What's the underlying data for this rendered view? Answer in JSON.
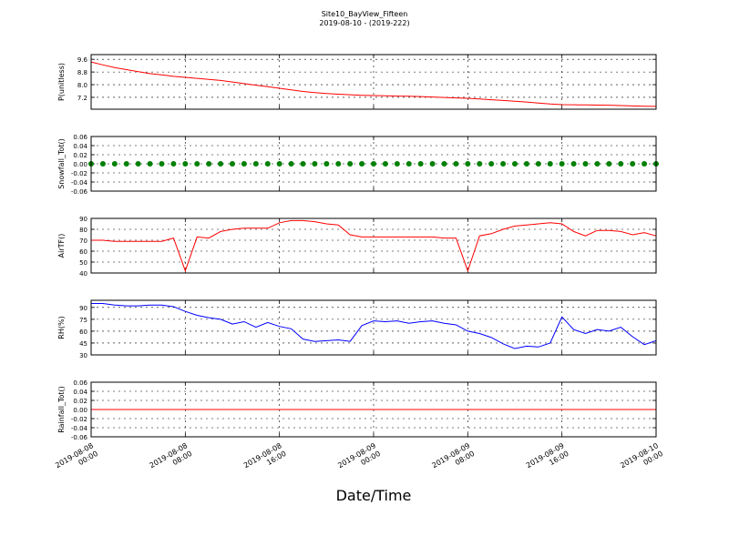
{
  "chart_data": [
    {
      "type": "line",
      "title": "Site10_BayView_Fifteen",
      "subtitle": "2019-08-10 - (2019-222)",
      "ylabel": "P(unitless)",
      "color": "#ff0000",
      "grid": true,
      "xlim": [
        "2019-08-08 00:00",
        "2019-08-10 00:00"
      ],
      "xticks": [
        "2019-08-08 00:00",
        "2019-08-08 08:00",
        "2019-08-08 16:00",
        "2019-08-09 00:00",
        "2019-08-09 08:00",
        "2019-08-09 16:00",
        "2019-08-10 00:00"
      ],
      "ylim": [
        6.45,
        9.9
      ],
      "yticks": [
        7.2,
        {
          "value": 8.0,
          "label": "8.0"
        },
        8.8,
        9.6
      ],
      "x": [
        "2019-08-08 00:00",
        "2019-08-08 01:00",
        "2019-08-08 02:00",
        "2019-08-08 03:00",
        "2019-08-08 04:00",
        "2019-08-08 05:00",
        "2019-08-08 06:00",
        "2019-08-08 07:00",
        "2019-08-08 08:00",
        "2019-08-08 09:00",
        "2019-08-08 10:00",
        "2019-08-08 11:00",
        "2019-08-08 12:00",
        "2019-08-08 13:00",
        "2019-08-08 14:00",
        "2019-08-08 15:00",
        "2019-08-08 16:00",
        "2019-08-08 17:00",
        "2019-08-08 18:00",
        "2019-08-08 19:00",
        "2019-08-08 20:00",
        "2019-08-08 21:00",
        "2019-08-08 22:00",
        "2019-08-08 23:00",
        "2019-08-09 00:00",
        "2019-08-09 01:00",
        "2019-08-09 02:00",
        "2019-08-09 03:00",
        "2019-08-09 04:00",
        "2019-08-09 05:00",
        "2019-08-09 06:00",
        "2019-08-09 07:00",
        "2019-08-09 08:00",
        "2019-08-09 09:00",
        "2019-08-09 10:00",
        "2019-08-09 11:00",
        "2019-08-09 12:00",
        "2019-08-09 13:00",
        "2019-08-09 14:00",
        "2019-08-09 15:00",
        "2019-08-09 16:00",
        "2019-08-09 17:00",
        "2019-08-09 18:00",
        "2019-08-09 19:00",
        "2019-08-09 20:00",
        "2019-08-09 21:00",
        "2019-08-09 22:00",
        "2019-08-09 23:00",
        "2019-08-10 00:00"
      ],
      "values": [
        9.43,
        9.25,
        9.08,
        8.95,
        8.82,
        8.7,
        8.62,
        8.53,
        8.46,
        8.4,
        8.33,
        8.27,
        8.17,
        8.07,
        7.97,
        7.87,
        7.77,
        7.67,
        7.57,
        7.5,
        7.44,
        7.4,
        7.36,
        7.33,
        7.31,
        7.3,
        7.28,
        7.27,
        7.25,
        7.22,
        7.19,
        7.16,
        7.14,
        7.1,
        7.05,
        7.0,
        6.95,
        6.9,
        6.84,
        6.78,
        6.74,
        6.73,
        6.72,
        6.71,
        6.7,
        6.68,
        6.66,
        6.64,
        6.63
      ]
    },
    {
      "type": "scatter",
      "ylabel": "Snowfall_Tot()",
      "color": "#008000",
      "grid": true,
      "xlim": [
        "2019-08-08 00:00",
        "2019-08-10 00:00"
      ],
      "xticks": [
        "2019-08-08 00:00",
        "2019-08-08 08:00",
        "2019-08-08 16:00",
        "2019-08-09 00:00",
        "2019-08-09 08:00",
        "2019-08-09 16:00",
        "2019-08-10 00:00"
      ],
      "ylim": [
        -0.06,
        0.06
      ],
      "yticks": [
        -0.06,
        -0.04,
        -0.02,
        {
          "value": 0,
          "label": "0.00"
        },
        0.02,
        0.04,
        0.06
      ],
      "x": [
        "2019-08-08 00:00",
        "2019-08-08 01:00",
        "2019-08-08 02:00",
        "2019-08-08 03:00",
        "2019-08-08 04:00",
        "2019-08-08 05:00",
        "2019-08-08 06:00",
        "2019-08-08 07:00",
        "2019-08-08 08:00",
        "2019-08-08 09:00",
        "2019-08-08 10:00",
        "2019-08-08 11:00",
        "2019-08-08 12:00",
        "2019-08-08 13:00",
        "2019-08-08 14:00",
        "2019-08-08 15:00",
        "2019-08-08 16:00",
        "2019-08-08 17:00",
        "2019-08-08 18:00",
        "2019-08-08 19:00",
        "2019-08-08 20:00",
        "2019-08-08 21:00",
        "2019-08-08 22:00",
        "2019-08-08 23:00",
        "2019-08-09 00:00",
        "2019-08-09 01:00",
        "2019-08-09 02:00",
        "2019-08-09 03:00",
        "2019-08-09 04:00",
        "2019-08-09 05:00",
        "2019-08-09 06:00",
        "2019-08-09 07:00",
        "2019-08-09 08:00",
        "2019-08-09 09:00",
        "2019-08-09 10:00",
        "2019-08-09 11:00",
        "2019-08-09 12:00",
        "2019-08-09 13:00",
        "2019-08-09 14:00",
        "2019-08-09 15:00",
        "2019-08-09 16:00",
        "2019-08-09 17:00",
        "2019-08-09 18:00",
        "2019-08-09 19:00",
        "2019-08-09 20:00",
        "2019-08-09 21:00",
        "2019-08-09 22:00",
        "2019-08-09 23:00",
        "2019-08-10 00:00"
      ],
      "values": [
        0,
        0,
        0,
        0,
        0,
        0,
        0,
        0,
        0,
        0,
        0,
        0,
        0,
        0,
        0,
        0,
        0,
        0,
        0,
        0,
        0,
        0,
        0,
        0,
        0,
        0,
        0,
        0,
        0,
        0,
        0,
        0,
        0,
        0,
        0,
        0,
        0,
        0,
        0,
        0,
        0,
        0,
        0,
        0,
        0,
        0,
        0,
        0,
        0
      ]
    },
    {
      "type": "line",
      "ylabel": "AirTF()",
      "color": "#ff0000",
      "grid": true,
      "xlim": [
        "2019-08-08 00:00",
        "2019-08-10 00:00"
      ],
      "xticks": [
        "2019-08-08 00:00",
        "2019-08-08 08:00",
        "2019-08-08 16:00",
        "2019-08-09 00:00",
        "2019-08-09 08:00",
        "2019-08-09 16:00",
        "2019-08-10 00:00"
      ],
      "ylim": [
        40,
        90
      ],
      "yticks": [
        40,
        50,
        60,
        70,
        80,
        90
      ],
      "x": [
        "2019-08-08 00:00",
        "2019-08-08 01:00",
        "2019-08-08 02:00",
        "2019-08-08 03:00",
        "2019-08-08 04:00",
        "2019-08-08 05:00",
        "2019-08-08 06:00",
        "2019-08-08 07:00",
        "2019-08-08 08:00",
        "2019-08-08 09:00",
        "2019-08-08 10:00",
        "2019-08-08 11:00",
        "2019-08-08 12:00",
        "2019-08-08 13:00",
        "2019-08-08 14:00",
        "2019-08-08 15:00",
        "2019-08-08 16:00",
        "2019-08-08 17:00",
        "2019-08-08 18:00",
        "2019-08-08 19:00",
        "2019-08-08 20:00",
        "2019-08-08 21:00",
        "2019-08-08 22:00",
        "2019-08-08 23:00",
        "2019-08-09 00:00",
        "2019-08-09 01:00",
        "2019-08-09 02:00",
        "2019-08-09 03:00",
        "2019-08-09 04:00",
        "2019-08-09 05:00",
        "2019-08-09 06:00",
        "2019-08-09 07:00",
        "2019-08-09 08:00",
        "2019-08-09 09:00",
        "2019-08-09 10:00",
        "2019-08-09 11:00",
        "2019-08-09 12:00",
        "2019-08-09 13:00",
        "2019-08-09 14:00",
        "2019-08-09 15:00",
        "2019-08-09 16:00",
        "2019-08-09 17:00",
        "2019-08-09 18:00",
        "2019-08-09 19:00",
        "2019-08-09 20:00",
        "2019-08-09 21:00",
        "2019-08-09 22:00",
        "2019-08-09 23:00",
        "2019-08-10 00:00"
      ],
      "values": [
        70,
        70,
        69,
        69,
        69,
        69,
        69,
        72,
        42,
        73,
        72,
        78,
        80,
        81,
        81,
        81,
        86,
        88,
        88,
        87,
        85,
        84,
        75,
        73,
        73,
        73,
        73,
        73,
        73,
        73,
        72,
        72,
        42,
        74,
        76,
        80,
        83,
        84,
        85,
        86,
        85,
        78,
        74,
        79,
        79,
        78,
        75,
        77,
        74
      ]
    },
    {
      "type": "line",
      "ylabel": "RH(%)",
      "color": "#0000ff",
      "grid": true,
      "xlim": [
        "2019-08-08 00:00",
        "2019-08-10 00:00"
      ],
      "xticks": [
        "2019-08-08 00:00",
        "2019-08-08 08:00",
        "2019-08-08 16:00",
        "2019-08-09 00:00",
        "2019-08-09 08:00",
        "2019-08-09 16:00",
        "2019-08-10 00:00"
      ],
      "ylim": [
        30,
        99
      ],
      "yticks": [
        30,
        45,
        60,
        75,
        90
      ],
      "x": [
        "2019-08-08 00:00",
        "2019-08-08 01:00",
        "2019-08-08 02:00",
        "2019-08-08 03:00",
        "2019-08-08 04:00",
        "2019-08-08 05:00",
        "2019-08-08 06:00",
        "2019-08-08 07:00",
        "2019-08-08 08:00",
        "2019-08-08 09:00",
        "2019-08-08 10:00",
        "2019-08-08 11:00",
        "2019-08-08 12:00",
        "2019-08-08 13:00",
        "2019-08-08 14:00",
        "2019-08-08 15:00",
        "2019-08-08 16:00",
        "2019-08-08 17:00",
        "2019-08-08 18:00",
        "2019-08-08 19:00",
        "2019-08-08 20:00",
        "2019-08-08 21:00",
        "2019-08-08 22:00",
        "2019-08-08 23:00",
        "2019-08-09 00:00",
        "2019-08-09 01:00",
        "2019-08-09 02:00",
        "2019-08-09 03:00",
        "2019-08-09 04:00",
        "2019-08-09 05:00",
        "2019-08-09 06:00",
        "2019-08-09 07:00",
        "2019-08-09 08:00",
        "2019-08-09 09:00",
        "2019-08-09 10:00",
        "2019-08-09 11:00",
        "2019-08-09 12:00",
        "2019-08-09 13:00",
        "2019-08-09 14:00",
        "2019-08-09 15:00",
        "2019-08-09 16:00",
        "2019-08-09 17:00",
        "2019-08-09 18:00",
        "2019-08-09 19:00",
        "2019-08-09 20:00",
        "2019-08-09 21:00",
        "2019-08-09 22:00",
        "2019-08-09 23:00",
        "2019-08-10 00:00"
      ],
      "values": [
        95,
        95,
        93,
        92,
        92,
        93,
        93,
        91,
        85,
        80,
        77,
        75,
        69,
        72,
        65,
        71,
        66,
        63,
        50,
        47,
        48,
        49,
        47,
        67,
        73,
        72,
        73,
        70,
        72,
        73,
        70,
        68,
        60,
        57,
        52,
        44,
        38,
        41,
        40,
        45,
        78,
        62,
        57,
        62,
        60,
        65,
        53,
        43,
        48
      ]
    },
    {
      "type": "line",
      "ylabel": "Rainfall_Tot()",
      "xlabel": "Date/Time",
      "color": "#ff0000",
      "grid": true,
      "xlim": [
        "2019-08-08 00:00",
        "2019-08-10 00:00"
      ],
      "xticks": [
        "2019-08-08 00:00",
        "2019-08-08 08:00",
        "2019-08-08 16:00",
        "2019-08-09 00:00",
        "2019-08-09 08:00",
        "2019-08-09 16:00",
        "2019-08-10 00:00"
      ],
      "ylim": [
        -0.06,
        0.06
      ],
      "yticks": [
        -0.06,
        -0.04,
        -0.02,
        {
          "value": 0,
          "label": "0.00"
        },
        0.02,
        0.04,
        0.06
      ],
      "x": [
        "2019-08-08 00:00",
        "2019-08-08 01:00",
        "2019-08-08 02:00",
        "2019-08-08 03:00",
        "2019-08-08 04:00",
        "2019-08-08 05:00",
        "2019-08-08 06:00",
        "2019-08-08 07:00",
        "2019-08-08 08:00",
        "2019-08-08 09:00",
        "2019-08-08 10:00",
        "2019-08-08 11:00",
        "2019-08-08 12:00",
        "2019-08-08 13:00",
        "2019-08-08 14:00",
        "2019-08-08 15:00",
        "2019-08-08 16:00",
        "2019-08-08 17:00",
        "2019-08-08 18:00",
        "2019-08-08 19:00",
        "2019-08-08 20:00",
        "2019-08-08 21:00",
        "2019-08-08 22:00",
        "2019-08-08 23:00",
        "2019-08-09 00:00",
        "2019-08-09 01:00",
        "2019-08-09 02:00",
        "2019-08-09 03:00",
        "2019-08-09 04:00",
        "2019-08-09 05:00",
        "2019-08-09 06:00",
        "2019-08-09 07:00",
        "2019-08-09 08:00",
        "2019-08-09 09:00",
        "2019-08-09 10:00",
        "2019-08-09 11:00",
        "2019-08-09 12:00",
        "2019-08-09 13:00",
        "2019-08-09 14:00",
        "2019-08-09 15:00",
        "2019-08-09 16:00",
        "2019-08-09 17:00",
        "2019-08-09 18:00",
        "2019-08-09 19:00",
        "2019-08-09 20:00",
        "2019-08-09 21:00",
        "2019-08-09 22:00",
        "2019-08-09 23:00",
        "2019-08-10 00:00"
      ],
      "values": [
        0,
        0,
        0,
        0,
        0,
        0,
        0,
        0,
        0,
        0,
        0,
        0,
        0,
        0,
        0,
        0,
        0,
        0,
        0,
        0,
        0,
        0,
        0,
        0,
        0,
        0,
        0,
        0,
        0,
        0,
        0,
        0,
        0,
        0,
        0,
        0,
        0,
        0,
        0,
        0,
        0,
        0,
        0,
        0,
        0,
        0,
        0,
        0,
        0
      ]
    }
  ]
}
